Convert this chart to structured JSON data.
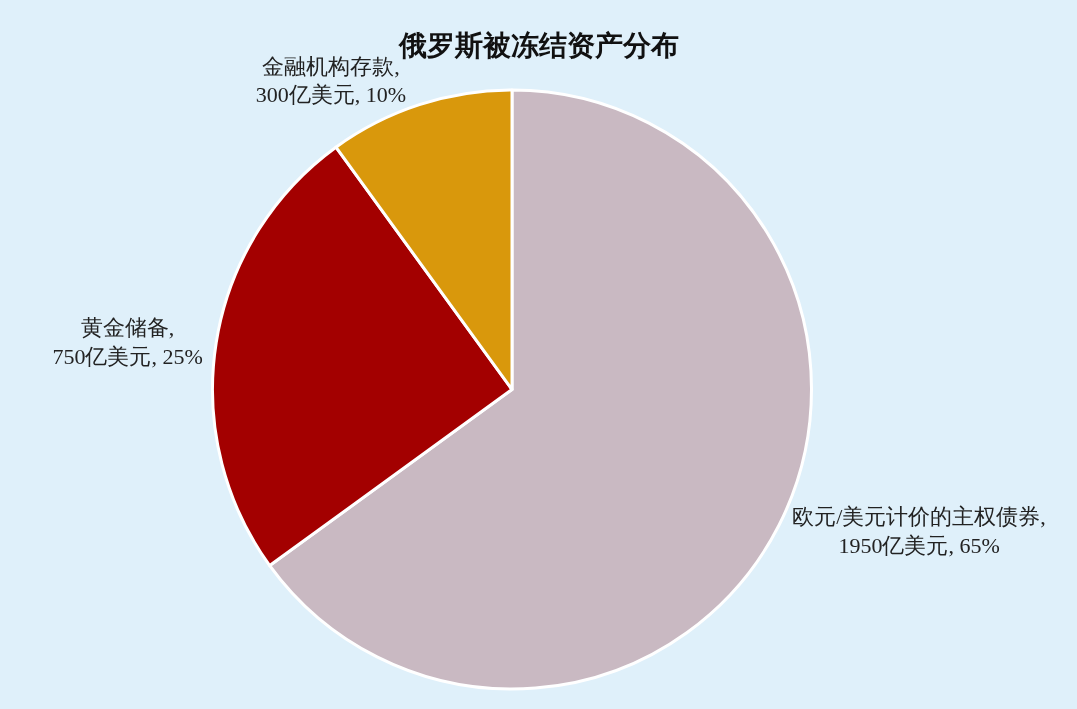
{
  "chart_data": {
    "type": "pie",
    "title": "俄罗斯被冻结资产分布",
    "categories": [
      "欧元/美元计价的主权债券",
      "黄金储备",
      "金融机构存款"
    ],
    "values": [
      1950,
      750,
      300
    ],
    "value_labels": [
      ", 1950亿美元, 65%",
      ", 750亿美元, 25%",
      ", 300亿美元, 10%"
    ],
    "colors": [
      "#c9b9c2",
      "#a30000",
      "#d9980c"
    ],
    "legend": false
  }
}
